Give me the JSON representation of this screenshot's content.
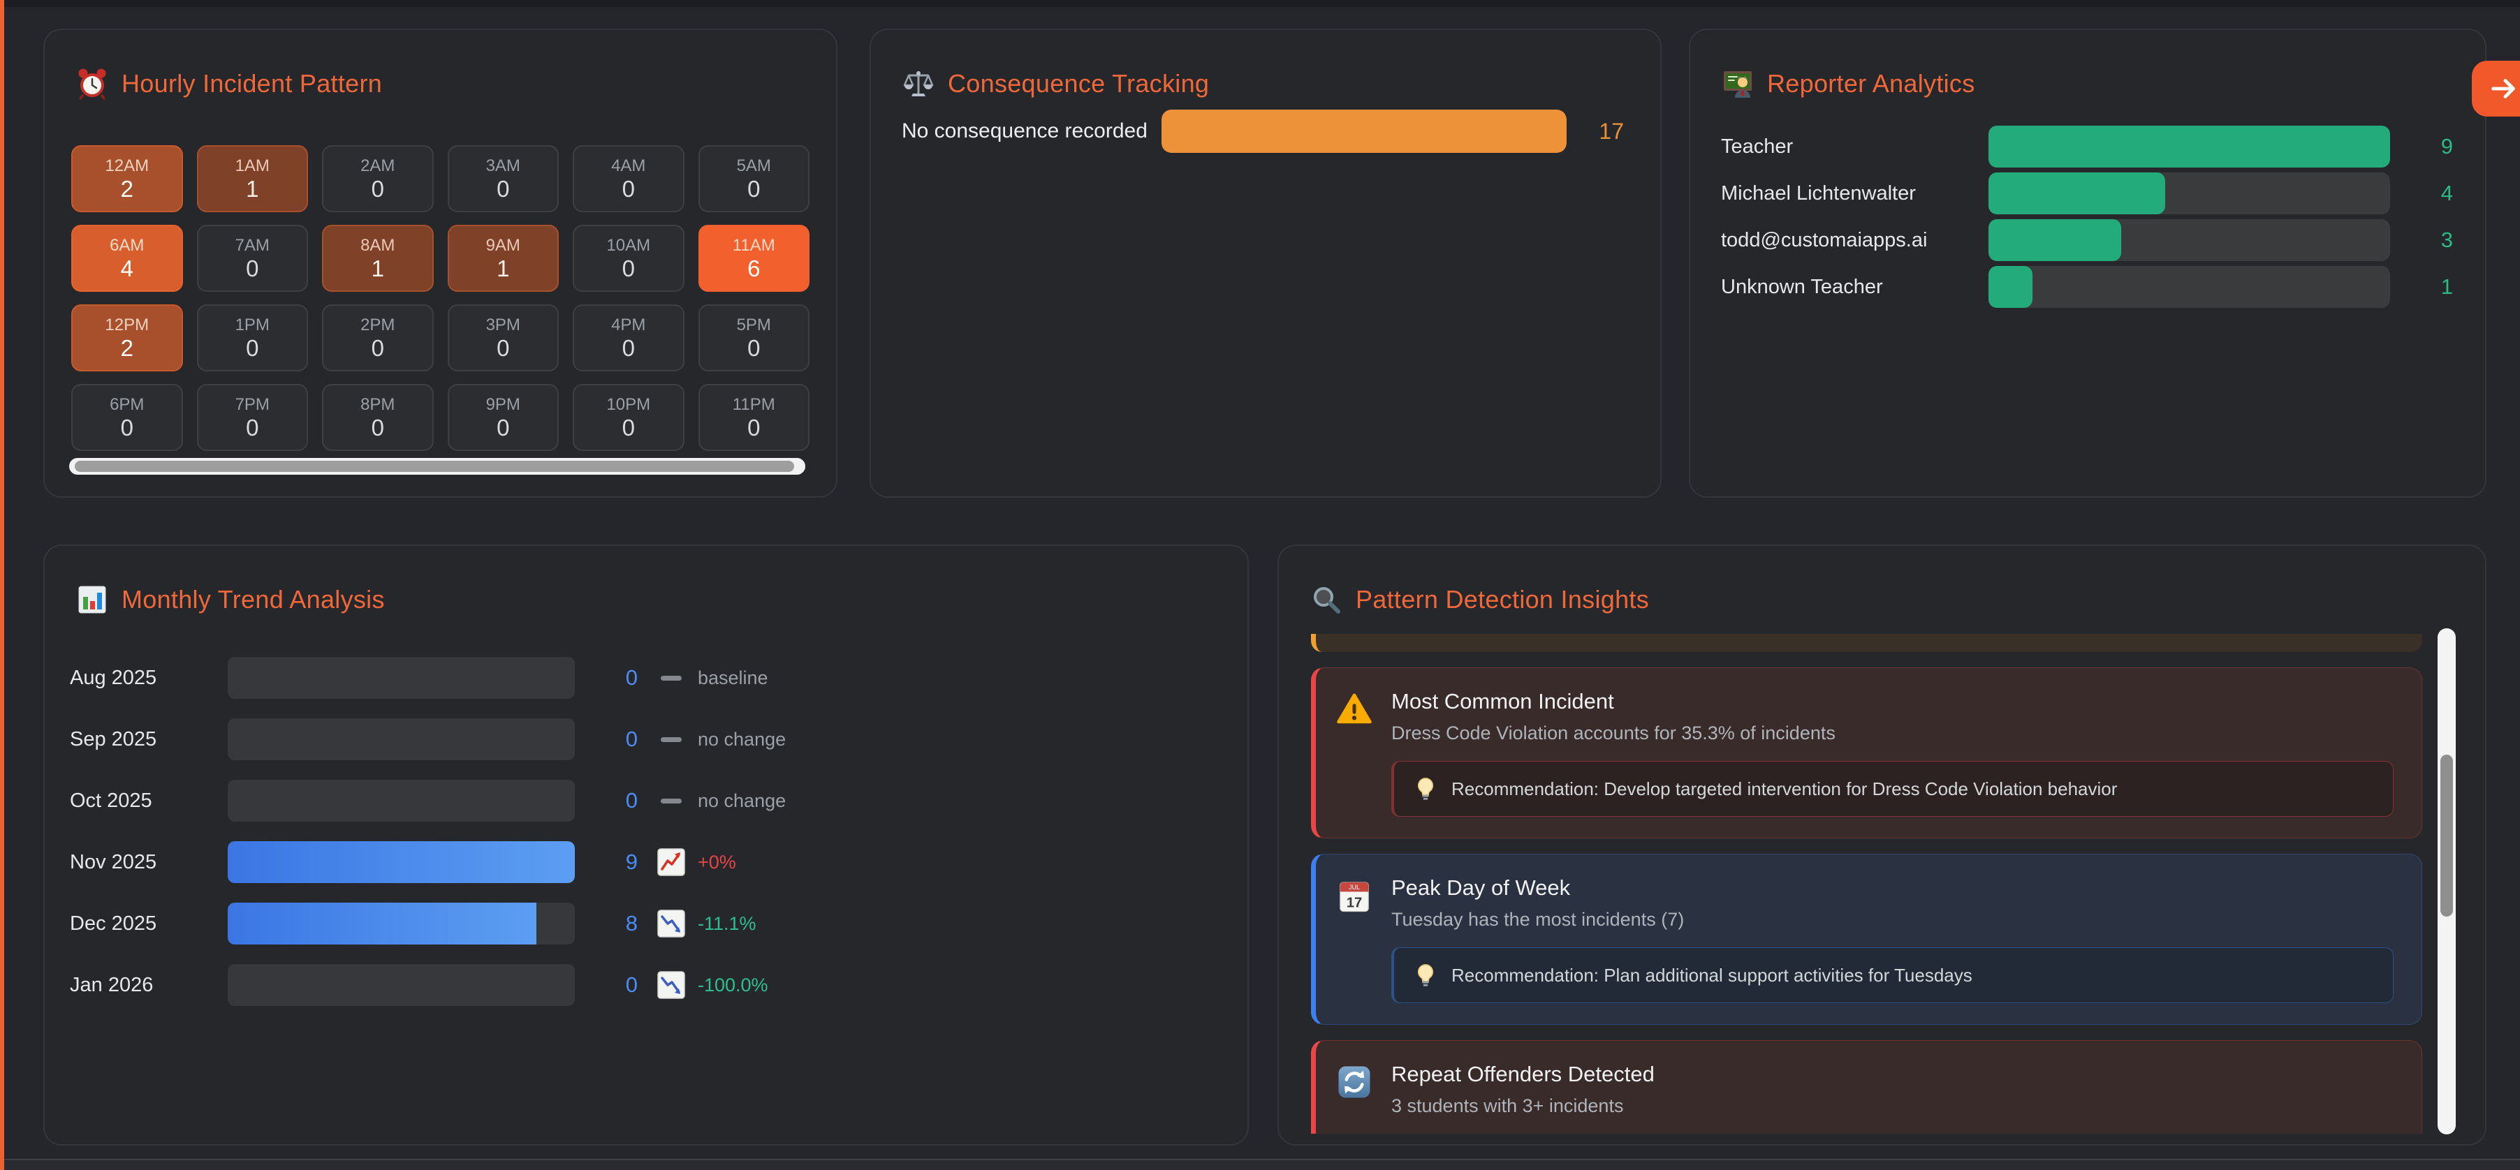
{
  "colors": {
    "accent_orange": "#f0683a",
    "bar_orange": "#ed9238",
    "value_orange": "#e8913d",
    "bar_green": "#23ab7b",
    "value_green": "#2db986",
    "bar_blue_start": "#3b76e4",
    "bar_blue_end": "#5c9ef2",
    "value_blue": "#4c8df5",
    "change_red": "#e64545",
    "change_green": "#2fbf8f",
    "change_gray": "#9aa0a6"
  },
  "hourly": {
    "title": "Hourly Incident Pattern",
    "icon": "alarm-clock",
    "palette": {
      "0": {
        "bg": "#2c2d31",
        "border": "#3e3f43",
        "label": "#9aa0a6",
        "count": "#d9dbde"
      },
      "1": {
        "bg": "#7f4229",
        "border": "#a7502c",
        "label": "#ecc9b6",
        "count": "#f7efe9"
      },
      "2": {
        "bg": "#a8502c",
        "border": "#c95a2c",
        "label": "#f0d2c0",
        "count": "#ffffff"
      },
      "4": {
        "bg": "#d85f2d",
        "border": "#e4632e",
        "label": "#f8dcca",
        "count": "#ffffff"
      },
      "6": {
        "bg": "#f2602e",
        "border": "#f2602e",
        "label": "#fbd8c5",
        "count": "#ffffff"
      }
    },
    "cells": [
      {
        "label": "12AM",
        "count": 2
      },
      {
        "label": "1AM",
        "count": 1
      },
      {
        "label": "2AM",
        "count": 0
      },
      {
        "label": "3AM",
        "count": 0
      },
      {
        "label": "4AM",
        "count": 0
      },
      {
        "label": "5AM",
        "count": 0
      },
      {
        "label": "6AM",
        "count": 4
      },
      {
        "label": "7AM",
        "count": 0
      },
      {
        "label": "8AM",
        "count": 1
      },
      {
        "label": "9AM",
        "count": 1
      },
      {
        "label": "10AM",
        "count": 0
      },
      {
        "label": "11AM",
        "count": 6
      },
      {
        "label": "12PM",
        "count": 2
      },
      {
        "label": "1PM",
        "count": 0
      },
      {
        "label": "2PM",
        "count": 0
      },
      {
        "label": "3PM",
        "count": 0
      },
      {
        "label": "4PM",
        "count": 0
      },
      {
        "label": "5PM",
        "count": 0
      },
      {
        "label": "6PM",
        "count": 0
      },
      {
        "label": "7PM",
        "count": 0
      },
      {
        "label": "8PM",
        "count": 0
      },
      {
        "label": "9PM",
        "count": 0
      },
      {
        "label": "10PM",
        "count": 0
      },
      {
        "label": "11PM",
        "count": 0
      }
    ]
  },
  "consequence": {
    "title": "Consequence Tracking",
    "icon": "scales",
    "rows": [
      {
        "label": "No consequence recorded",
        "value": 17,
        "pct": 100
      }
    ]
  },
  "reporter": {
    "title": "Reporter Analytics",
    "icon": "teacher",
    "rows": [
      {
        "label": "Teacher",
        "value": 9,
        "pct": 100
      },
      {
        "label": "Michael Lichtenwalter",
        "value": 4,
        "pct": 44
      },
      {
        "label": "todd@customaiapps.ai",
        "value": 3,
        "pct": 33
      },
      {
        "label": "Unknown Teacher",
        "value": 1,
        "pct": 11
      }
    ]
  },
  "monthly": {
    "title": "Monthly Trend Analysis",
    "icon": "bar-chart",
    "rows": [
      {
        "label": "Aug 2025",
        "value": 0,
        "pct": 0,
        "icon": "dash",
        "change": "baseline",
        "change_color": "#9aa0a6"
      },
      {
        "label": "Sep 2025",
        "value": 0,
        "pct": 0,
        "icon": "dash",
        "change": "no change",
        "change_color": "#9aa0a6"
      },
      {
        "label": "Oct 2025",
        "value": 0,
        "pct": 0,
        "icon": "dash",
        "change": "no change",
        "change_color": "#9aa0a6"
      },
      {
        "label": "Nov 2025",
        "value": 9,
        "pct": 100,
        "icon": "chart-up",
        "change": "+0%",
        "change_color": "#e64545"
      },
      {
        "label": "Dec 2025",
        "value": 8,
        "pct": 89,
        "icon": "chart-down",
        "change": "-11.1%",
        "change_color": "#2fbf8f"
      },
      {
        "label": "Jan 2026",
        "value": 0,
        "pct": 0,
        "icon": "chart-down",
        "change": "-100.0%",
        "change_color": "#2fbf8f"
      }
    ]
  },
  "insights": {
    "title": "Pattern Detection Insights",
    "icon": "magnifier",
    "cards": [
      {
        "type": "partial",
        "accent": "#f0a030",
        "bg": "#393027"
      },
      {
        "type": "card",
        "icon": "warning",
        "title": "Most Common Incident",
        "description": "Dress Code Violation accounts for 35.3% of incidents",
        "recommendation": "Recommendation: Develop targeted intervention for Dress Code Violation behavior",
        "accent": "#ea4646",
        "bg": "#3a2b2b",
        "inner_bg": "#2d2222"
      },
      {
        "type": "card",
        "icon": "calendar",
        "calendar_month": "JUL",
        "calendar_day": "17",
        "title": "Peak Day of Week",
        "description": "Tuesday has the most incidents (7)",
        "recommendation": "Recommendation: Plan additional support activities for Tuesdays",
        "accent": "#3e7ff2",
        "bg": "#2a3140",
        "inner_bg": "#222a38"
      },
      {
        "type": "card",
        "icon": "repeat",
        "title": "Repeat Offenders Detected",
        "description": "3 students with 3+ incidents",
        "recommendation": null,
        "accent": "#ea4646",
        "bg": "#3a2b2b",
        "inner_bg": "#2d2222"
      }
    ]
  },
  "nav": {
    "arrow_button_color": "#f1582a"
  }
}
